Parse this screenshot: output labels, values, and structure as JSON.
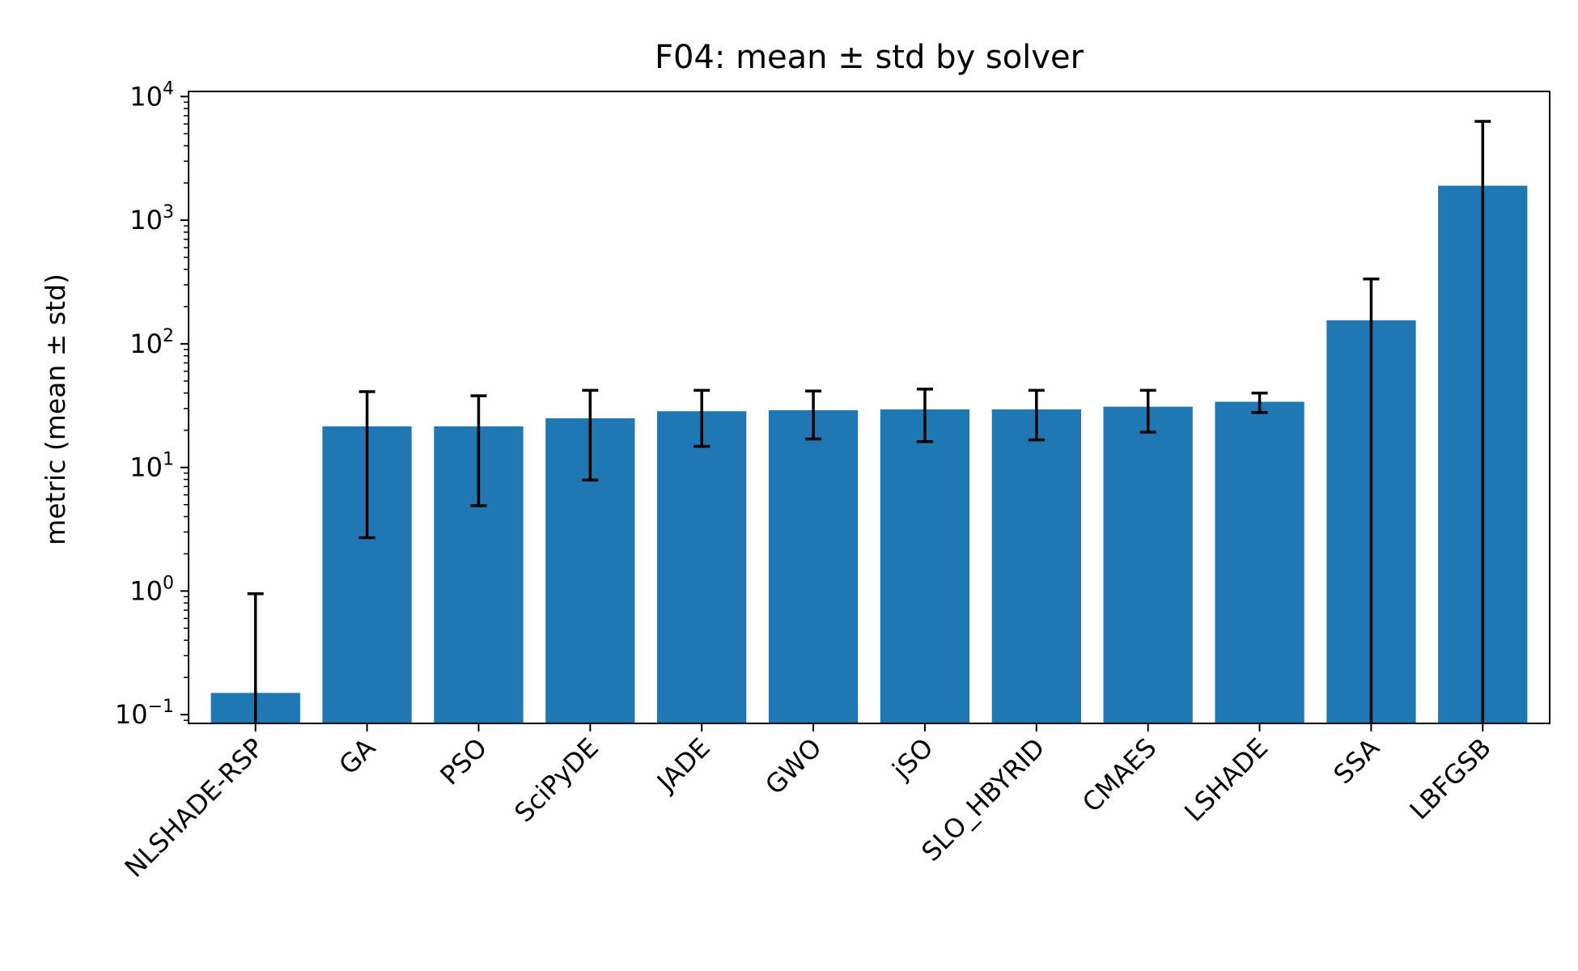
{
  "chart_data": {
    "type": "bar",
    "title": "F04: mean ± std by solver",
    "xlabel": "",
    "ylabel": "metric (mean ± std)",
    "yscale": "log",
    "ylim": [
      0.085,
      11000
    ],
    "grid": false,
    "legend": "none",
    "bar_color": "#1f77b4",
    "errorbar_color": "#000000",
    "y_ticks": [
      {
        "base": "10",
        "exp": "−1",
        "value": 0.1
      },
      {
        "base": "10",
        "exp": "0",
        "value": 1
      },
      {
        "base": "10",
        "exp": "1",
        "value": 10
      },
      {
        "base": "10",
        "exp": "2",
        "value": 100
      },
      {
        "base": "10",
        "exp": "3",
        "value": 1000
      },
      {
        "base": "10",
        "exp": "4",
        "value": 10000
      }
    ],
    "categories": [
      "NLSHADE-RSP",
      "GA",
      "PSO",
      "SciPyDE",
      "JADE",
      "GWO",
      "jSO",
      "SLO_HBYRID",
      "CMAES",
      "LSHADE",
      "SSA",
      "LBFGSB"
    ],
    "values": [
      0.15,
      21.5,
      21.5,
      25,
      28.5,
      29,
      29.5,
      29.5,
      31,
      34,
      155,
      1900
    ],
    "err_low": [
      0.01,
      2.7,
      4.9,
      7.9,
      14.8,
      17,
      16.2,
      16.7,
      19.3,
      27.8,
      0.01,
      0.01
    ],
    "err_high": [
      0.95,
      41,
      38,
      42,
      42,
      41.5,
      43,
      42,
      42,
      40,
      335,
      6300
    ]
  }
}
